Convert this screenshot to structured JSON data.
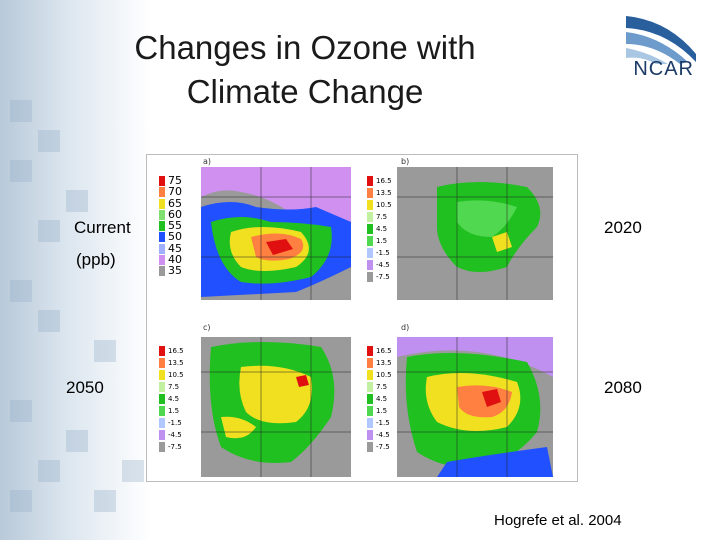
{
  "slide": {
    "title_line1": "Changes in Ozone with",
    "title_line2": "Climate Change",
    "logo_text": "NCAR",
    "labels": {
      "current": "Current",
      "ppb": "(ppb)",
      "y2020": "2020",
      "y2050": "2050",
      "y2080": "2080"
    },
    "citation": "Hogrefe et al. 2004"
  },
  "figure": {
    "panels": [
      {
        "id": "a",
        "label": "a)",
        "legend": [
          "75",
          "70",
          "65",
          "60",
          "55",
          "50",
          "45",
          "40",
          "35"
        ]
      },
      {
        "id": "b",
        "label": "b)",
        "legend": [
          "16.5",
          "13.5",
          "10.5",
          "7.5",
          "4.5",
          "1.5",
          "-1.5",
          "-4.5",
          "-7.5"
        ]
      },
      {
        "id": "c",
        "label": "c)",
        "legend": [
          "16.5",
          "13.5",
          "10.5",
          "7.5",
          "4.5",
          "1.5",
          "-1.5",
          "-4.5",
          "-7.5"
        ]
      },
      {
        "id": "d",
        "label": "d)",
        "legend": [
          "16.5",
          "13.5",
          "10.5",
          "7.5",
          "4.5",
          "1.5",
          "-1.5",
          "-4.5",
          "-7.5"
        ]
      }
    ],
    "colors": {
      "abs_scale": [
        "#e01010",
        "#ff8040",
        "#f0e020",
        "#7fe070",
        "#20c020",
        "#2050ff",
        "#a0b0ff",
        "#d090f0",
        "#9a9a9a"
      ],
      "diff_scale": [
        "#e01010",
        "#ff8040",
        "#f0e020",
        "#c0f0a0",
        "#20c020",
        "#50d850",
        "#b0c8ff",
        "#c090f0",
        "#9a9a9a"
      ]
    }
  }
}
